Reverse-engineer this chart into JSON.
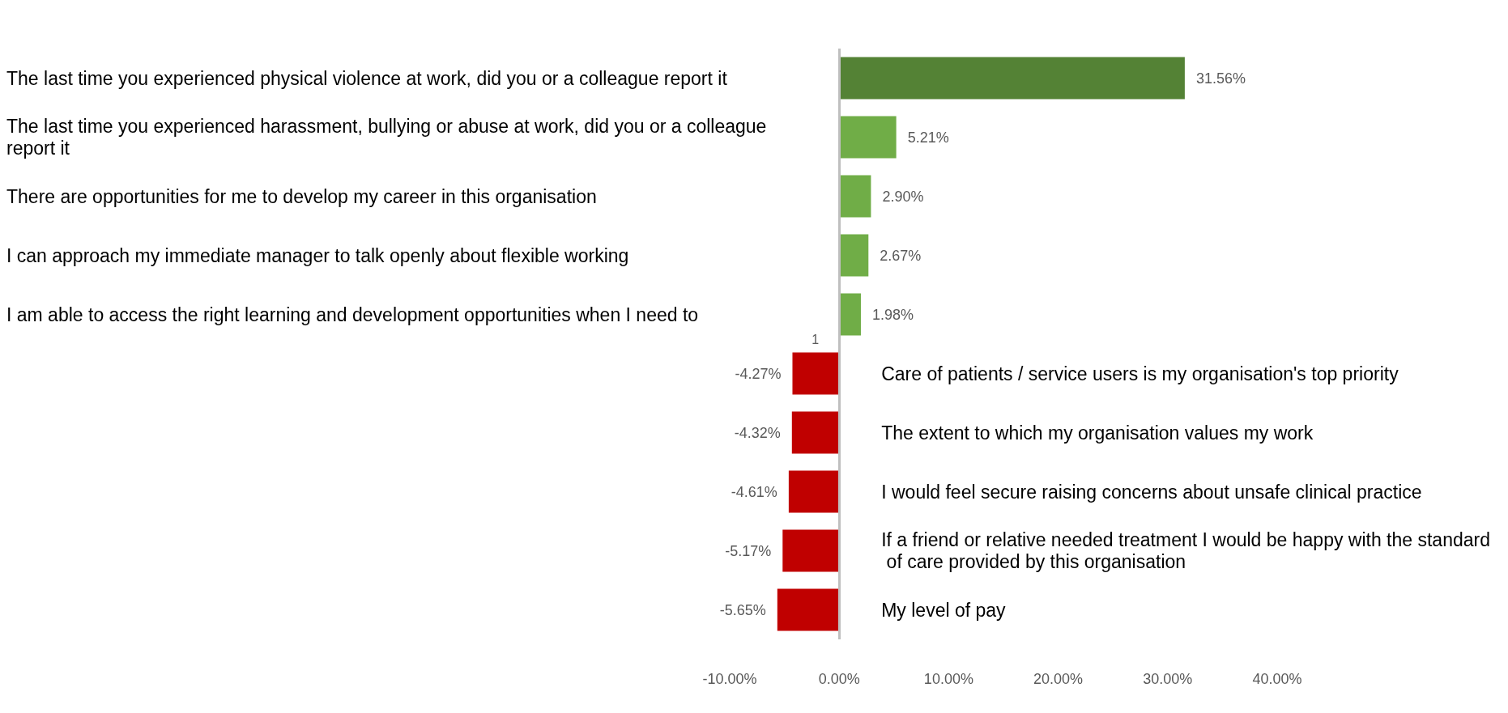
{
  "chart_data": {
    "type": "bar",
    "orientation": "horizontal",
    "categories": [
      "The last time you experienced physical violence at work, did you or a colleague report it",
      "The last time you experienced harassment, bullying or abuse at work, did you or a colleague report it",
      "There are opportunities for me to develop my career in this organisation",
      "I can approach my immediate manager to talk openly about flexible working",
      "I am able to access the right learning and development opportunities when I need to",
      "Care of patients / service users is my organisation's top priority",
      "The extent to which my organisation values my work",
      "I would feel secure raising concerns about unsafe clinical practice",
      "If a friend or relative needed treatment I would be happy with the standard of care provided by this organisation",
      "My level of pay"
    ],
    "values": [
      31.56,
      5.21,
      2.9,
      2.67,
      1.98,
      -4.27,
      -4.32,
      -4.61,
      -5.17,
      -5.65
    ],
    "colors": [
      "#548235",
      "#70ad47",
      "#70ad47",
      "#70ad47",
      "#70ad47",
      "#c00000",
      "#c00000",
      "#c00000",
      "#c00000",
      "#c00000"
    ],
    "value_labels": [
      "31.56%",
      "5.21%",
      "2.90%",
      "2.67%",
      "1.98%",
      "-4.27%",
      "-4.32%",
      "-4.61%",
      "-5.17%",
      "-5.65%"
    ],
    "xlim": [
      -10,
      40
    ],
    "xticks": [
      {
        "value": -10,
        "label": "-10.00%"
      },
      {
        "value": 0,
        "label": "0.00%"
      },
      {
        "value": 10,
        "label": "10.00%"
      },
      {
        "value": 20,
        "label": "20.00%"
      },
      {
        "value": 30,
        "label": "30.00%"
      },
      {
        "value": 40,
        "label": "40.00%"
      }
    ],
    "annotations": [
      "1"
    ],
    "ref_lines": [
      {
        "axis": "x",
        "value": 0,
        "color": "#bfbfbf"
      }
    ],
    "grid": false
  }
}
